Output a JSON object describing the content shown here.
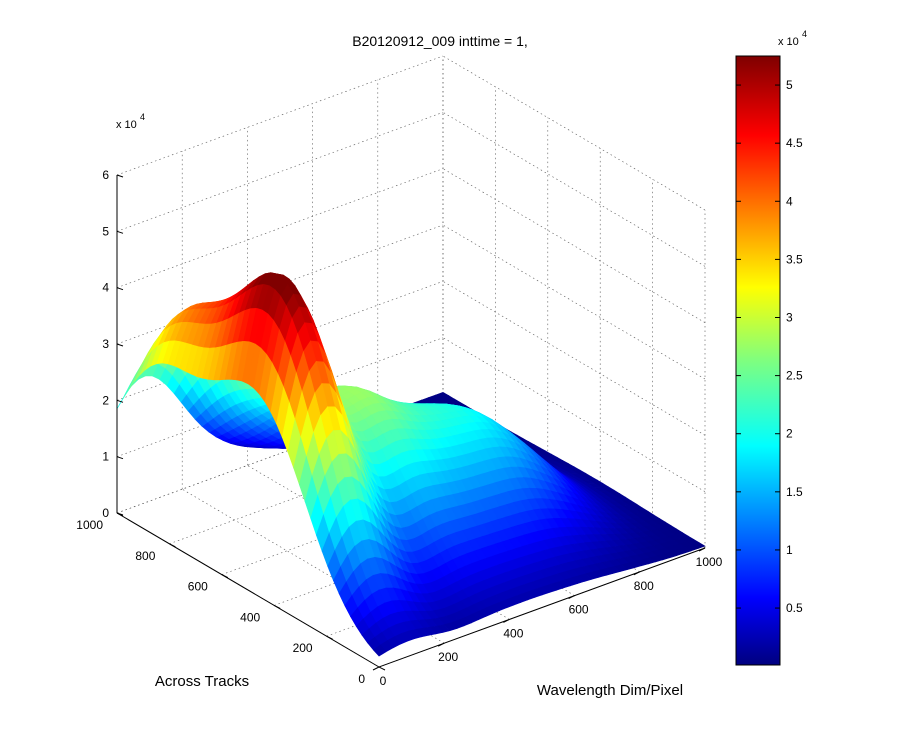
{
  "chart_data": {
    "type": "surface",
    "title": "B20120912_009 inttime = 1,",
    "xlabel": "Wavelength Dim/Pixel",
    "ylabel": "Across Tracks",
    "zlabel": "",
    "x_ticks": [
      "0",
      "200",
      "400",
      "600",
      "800",
      "1000"
    ],
    "y_ticks": [
      "0",
      "200",
      "400",
      "600",
      "800",
      "1000"
    ],
    "z_ticks": [
      "0",
      "1",
      "2",
      "3",
      "4",
      "5",
      "6"
    ],
    "z_multiplier": {
      "base": "x 10",
      "exponent": "4"
    },
    "xlim": [
      0,
      1000
    ],
    "ylim": [
      0,
      1000
    ],
    "zlim": [
      0,
      60000
    ],
    "grid": true,
    "colormap": "jet",
    "colorbar": {
      "ticks": [
        "0.5",
        "1",
        "1.5",
        "2",
        "2.5",
        "3",
        "3.5",
        "4",
        "4.5",
        "5"
      ],
      "range": [
        100,
        52500
      ],
      "multiplier": {
        "base": "x 10",
        "exponent": "4"
      },
      "placement": "right"
    },
    "peaks": [
      {
        "x": 90,
        "y": 470,
        "z": 52000,
        "width": 100,
        "spread_y": 190
      },
      {
        "x": 80,
        "y": 860,
        "z": 31000,
        "width": 130,
        "spread_y": 160
      },
      {
        "x": 330,
        "y": 520,
        "z": 19500,
        "width": 80,
        "spread_y": 220
      },
      {
        "x": 470,
        "y": 480,
        "z": 15500,
        "width": 90,
        "spread_y": 220
      },
      {
        "x": 620,
        "y": 450,
        "z": 13000,
        "width": 90,
        "spread_y": 200
      },
      {
        "x": 760,
        "y": 420,
        "z": 9000,
        "width": 100,
        "spread_y": 180
      }
    ]
  }
}
